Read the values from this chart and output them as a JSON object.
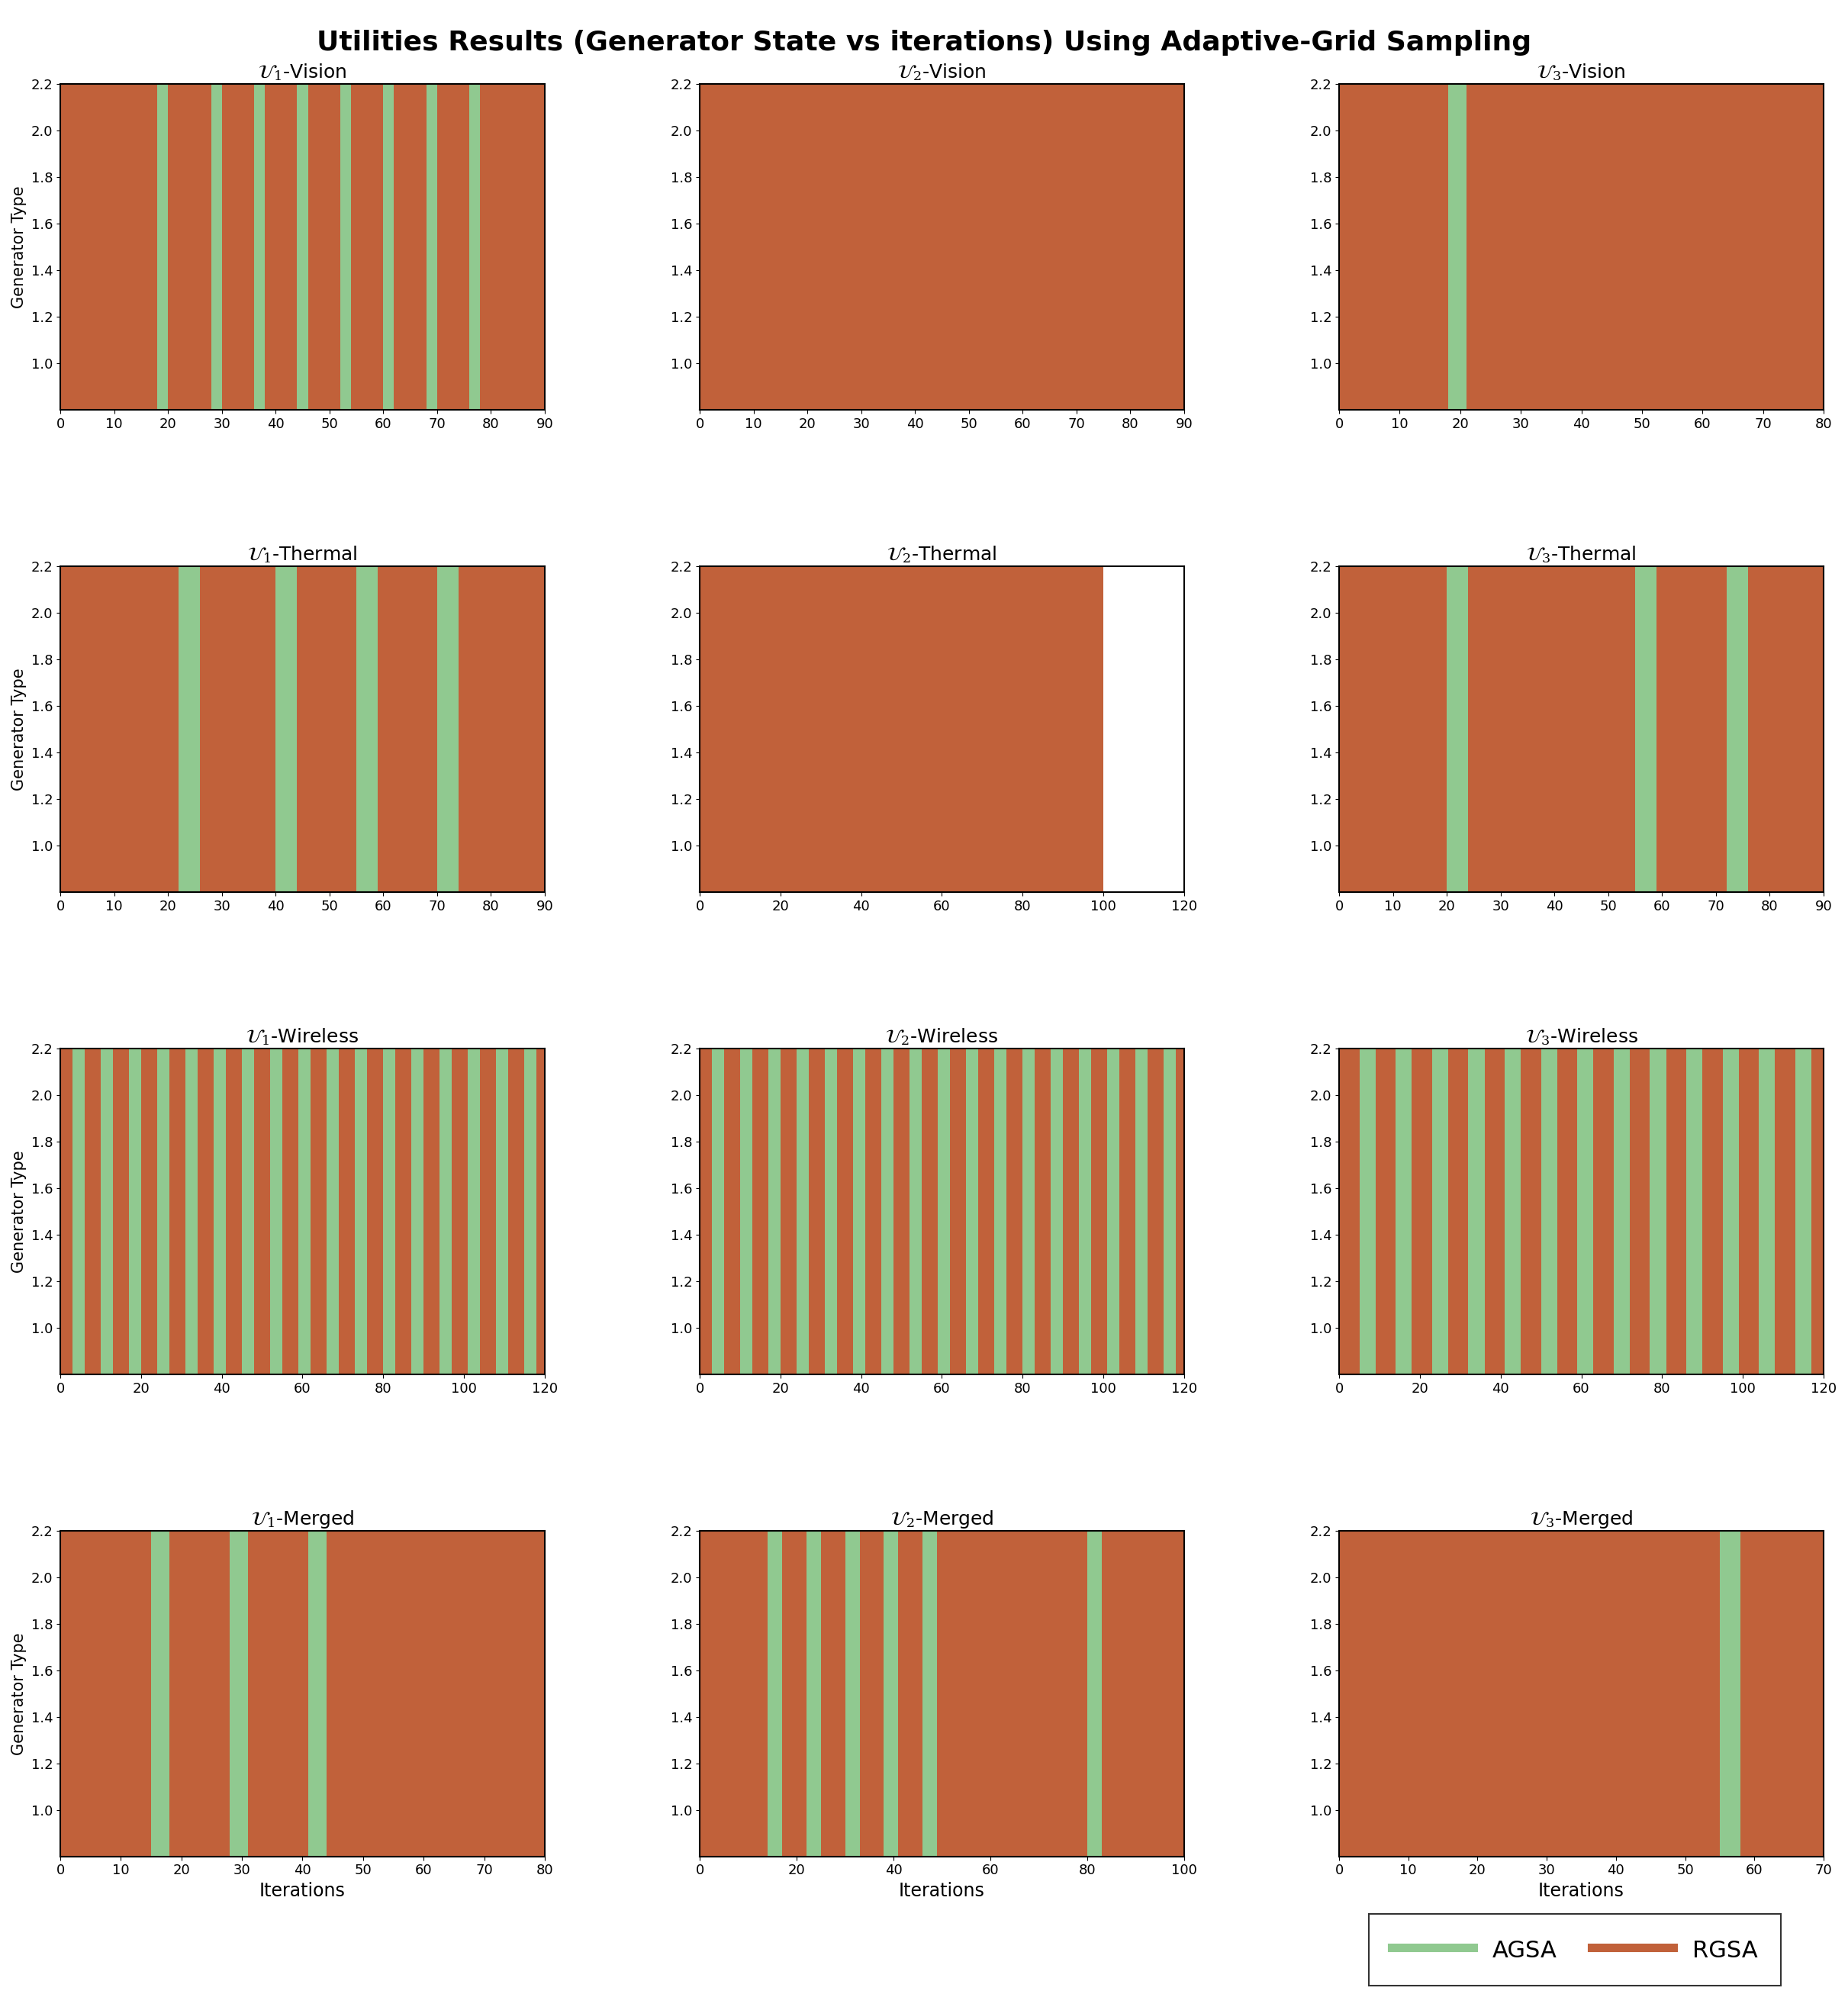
{
  "title": "Utilities Results (Generator State vs iterations) Using Adaptive-Grid Sampling",
  "subplot_titles": [
    [
      "$\\mathcal{U}_1$-Vision",
      "$\\mathcal{U}_2$-Vision",
      "$\\mathcal{U}_3$-Vision"
    ],
    [
      "$\\mathcal{U}_1$-Thermal",
      "$\\mathcal{U}_2$-Thermal",
      "$\\mathcal{U}_3$-Thermal"
    ],
    [
      "$\\mathcal{U}_1$-Wireless",
      "$\\mathcal{U}_2$-Wireless",
      "$\\mathcal{U}_3$-Wireless"
    ],
    [
      "$\\mathcal{U}_1$-Merged",
      "$\\mathcal{U}_2$-Merged",
      "$\\mathcal{U}_3$-Merged"
    ]
  ],
  "ylabel": "Generator Type",
  "xlabel": "Iterations",
  "ylim": [
    0.8,
    2.2
  ],
  "yticks": [
    1.0,
    1.2,
    1.4,
    1.6,
    1.8,
    2.0,
    2.2
  ],
  "color_agsa": "#90C990",
  "color_rgsa": "#C1613A",
  "agsa_label": "AGSA",
  "rgsa_label": "RGSA",
  "plots": {
    "vision_u1": {
      "xlim": [
        0,
        90
      ],
      "xticks": [
        0,
        10,
        20,
        30,
        40,
        50,
        60,
        70,
        80,
        90
      ],
      "segments": [
        {
          "start": 0,
          "end": 18,
          "color": "rgsa"
        },
        {
          "start": 18,
          "end": 20,
          "color": "agsa"
        },
        {
          "start": 20,
          "end": 28,
          "color": "rgsa"
        },
        {
          "start": 28,
          "end": 30,
          "color": "agsa"
        },
        {
          "start": 30,
          "end": 36,
          "color": "rgsa"
        },
        {
          "start": 36,
          "end": 38,
          "color": "agsa"
        },
        {
          "start": 38,
          "end": 44,
          "color": "rgsa"
        },
        {
          "start": 44,
          "end": 46,
          "color": "agsa"
        },
        {
          "start": 46,
          "end": 52,
          "color": "rgsa"
        },
        {
          "start": 52,
          "end": 54,
          "color": "agsa"
        },
        {
          "start": 54,
          "end": 60,
          "color": "rgsa"
        },
        {
          "start": 60,
          "end": 62,
          "color": "agsa"
        },
        {
          "start": 62,
          "end": 68,
          "color": "rgsa"
        },
        {
          "start": 68,
          "end": 70,
          "color": "agsa"
        },
        {
          "start": 70,
          "end": 76,
          "color": "rgsa"
        },
        {
          "start": 76,
          "end": 78,
          "color": "agsa"
        },
        {
          "start": 78,
          "end": 90,
          "color": "rgsa"
        }
      ]
    },
    "vision_u2": {
      "xlim": [
        0,
        90
      ],
      "xticks": [
        0,
        10,
        20,
        30,
        40,
        50,
        60,
        70,
        80,
        90
      ],
      "segments": [
        {
          "start": 0,
          "end": 90,
          "color": "rgsa"
        }
      ]
    },
    "vision_u3": {
      "xlim": [
        0,
        80
      ],
      "xticks": [
        0,
        10,
        20,
        30,
        40,
        50,
        60,
        70,
        80
      ],
      "segments": [
        {
          "start": 0,
          "end": 18,
          "color": "rgsa"
        },
        {
          "start": 18,
          "end": 21,
          "color": "agsa"
        },
        {
          "start": 21,
          "end": 80,
          "color": "rgsa"
        }
      ]
    },
    "thermal_u1": {
      "xlim": [
        0,
        90
      ],
      "xticks": [
        0,
        10,
        20,
        30,
        40,
        50,
        60,
        70,
        80,
        90
      ],
      "segments": [
        {
          "start": 0,
          "end": 22,
          "color": "rgsa"
        },
        {
          "start": 22,
          "end": 26,
          "color": "agsa"
        },
        {
          "start": 26,
          "end": 40,
          "color": "rgsa"
        },
        {
          "start": 40,
          "end": 44,
          "color": "agsa"
        },
        {
          "start": 44,
          "end": 55,
          "color": "rgsa"
        },
        {
          "start": 55,
          "end": 59,
          "color": "agsa"
        },
        {
          "start": 59,
          "end": 70,
          "color": "rgsa"
        },
        {
          "start": 70,
          "end": 74,
          "color": "agsa"
        },
        {
          "start": 74,
          "end": 90,
          "color": "rgsa"
        }
      ]
    },
    "thermal_u2": {
      "xlim": [
        0,
        120
      ],
      "xticks": [
        0,
        20,
        40,
        60,
        80,
        100,
        120
      ],
      "segments": [
        {
          "start": 0,
          "end": 100,
          "color": "rgsa"
        }
      ]
    },
    "thermal_u3": {
      "xlim": [
        0,
        90
      ],
      "xticks": [
        0,
        10,
        20,
        30,
        40,
        50,
        60,
        70,
        80,
        90
      ],
      "segments": [
        {
          "start": 0,
          "end": 20,
          "color": "rgsa"
        },
        {
          "start": 20,
          "end": 24,
          "color": "agsa"
        },
        {
          "start": 24,
          "end": 55,
          "color": "rgsa"
        },
        {
          "start": 55,
          "end": 59,
          "color": "agsa"
        },
        {
          "start": 59,
          "end": 72,
          "color": "rgsa"
        },
        {
          "start": 72,
          "end": 76,
          "color": "agsa"
        },
        {
          "start": 76,
          "end": 90,
          "color": "rgsa"
        }
      ]
    },
    "wireless_u1": {
      "xlim": [
        0,
        120
      ],
      "xticks": [
        0,
        20,
        40,
        60,
        80,
        100,
        120
      ],
      "segments": [
        {
          "start": 0,
          "end": 3,
          "color": "rgsa"
        },
        {
          "start": 3,
          "end": 6,
          "color": "agsa"
        },
        {
          "start": 6,
          "end": 10,
          "color": "rgsa"
        },
        {
          "start": 10,
          "end": 13,
          "color": "agsa"
        },
        {
          "start": 13,
          "end": 17,
          "color": "rgsa"
        },
        {
          "start": 17,
          "end": 20,
          "color": "agsa"
        },
        {
          "start": 20,
          "end": 24,
          "color": "rgsa"
        },
        {
          "start": 24,
          "end": 27,
          "color": "agsa"
        },
        {
          "start": 27,
          "end": 31,
          "color": "rgsa"
        },
        {
          "start": 31,
          "end": 34,
          "color": "agsa"
        },
        {
          "start": 34,
          "end": 38,
          "color": "rgsa"
        },
        {
          "start": 38,
          "end": 41,
          "color": "agsa"
        },
        {
          "start": 41,
          "end": 45,
          "color": "rgsa"
        },
        {
          "start": 45,
          "end": 48,
          "color": "agsa"
        },
        {
          "start": 48,
          "end": 52,
          "color": "rgsa"
        },
        {
          "start": 52,
          "end": 55,
          "color": "agsa"
        },
        {
          "start": 55,
          "end": 59,
          "color": "rgsa"
        },
        {
          "start": 59,
          "end": 62,
          "color": "agsa"
        },
        {
          "start": 62,
          "end": 66,
          "color": "rgsa"
        },
        {
          "start": 66,
          "end": 69,
          "color": "agsa"
        },
        {
          "start": 69,
          "end": 73,
          "color": "rgsa"
        },
        {
          "start": 73,
          "end": 76,
          "color": "agsa"
        },
        {
          "start": 76,
          "end": 80,
          "color": "rgsa"
        },
        {
          "start": 80,
          "end": 83,
          "color": "agsa"
        },
        {
          "start": 83,
          "end": 87,
          "color": "rgsa"
        },
        {
          "start": 87,
          "end": 90,
          "color": "agsa"
        },
        {
          "start": 90,
          "end": 94,
          "color": "rgsa"
        },
        {
          "start": 94,
          "end": 97,
          "color": "agsa"
        },
        {
          "start": 97,
          "end": 101,
          "color": "rgsa"
        },
        {
          "start": 101,
          "end": 104,
          "color": "agsa"
        },
        {
          "start": 104,
          "end": 108,
          "color": "rgsa"
        },
        {
          "start": 108,
          "end": 111,
          "color": "agsa"
        },
        {
          "start": 111,
          "end": 115,
          "color": "rgsa"
        },
        {
          "start": 115,
          "end": 118,
          "color": "agsa"
        },
        {
          "start": 118,
          "end": 120,
          "color": "rgsa"
        }
      ]
    },
    "wireless_u2": {
      "xlim": [
        0,
        120
      ],
      "xticks": [
        0,
        20,
        40,
        60,
        80,
        100,
        120
      ],
      "segments": [
        {
          "start": 0,
          "end": 3,
          "color": "rgsa"
        },
        {
          "start": 3,
          "end": 6,
          "color": "agsa"
        },
        {
          "start": 6,
          "end": 10,
          "color": "rgsa"
        },
        {
          "start": 10,
          "end": 13,
          "color": "agsa"
        },
        {
          "start": 13,
          "end": 17,
          "color": "rgsa"
        },
        {
          "start": 17,
          "end": 20,
          "color": "agsa"
        },
        {
          "start": 20,
          "end": 24,
          "color": "rgsa"
        },
        {
          "start": 24,
          "end": 27,
          "color": "agsa"
        },
        {
          "start": 27,
          "end": 31,
          "color": "rgsa"
        },
        {
          "start": 31,
          "end": 34,
          "color": "agsa"
        },
        {
          "start": 34,
          "end": 38,
          "color": "rgsa"
        },
        {
          "start": 38,
          "end": 41,
          "color": "agsa"
        },
        {
          "start": 41,
          "end": 45,
          "color": "rgsa"
        },
        {
          "start": 45,
          "end": 48,
          "color": "agsa"
        },
        {
          "start": 48,
          "end": 52,
          "color": "rgsa"
        },
        {
          "start": 52,
          "end": 55,
          "color": "agsa"
        },
        {
          "start": 55,
          "end": 59,
          "color": "rgsa"
        },
        {
          "start": 59,
          "end": 62,
          "color": "agsa"
        },
        {
          "start": 62,
          "end": 66,
          "color": "rgsa"
        },
        {
          "start": 66,
          "end": 69,
          "color": "agsa"
        },
        {
          "start": 69,
          "end": 73,
          "color": "rgsa"
        },
        {
          "start": 73,
          "end": 76,
          "color": "agsa"
        },
        {
          "start": 76,
          "end": 80,
          "color": "rgsa"
        },
        {
          "start": 80,
          "end": 83,
          "color": "agsa"
        },
        {
          "start": 83,
          "end": 87,
          "color": "rgsa"
        },
        {
          "start": 87,
          "end": 90,
          "color": "agsa"
        },
        {
          "start": 90,
          "end": 94,
          "color": "rgsa"
        },
        {
          "start": 94,
          "end": 97,
          "color": "agsa"
        },
        {
          "start": 97,
          "end": 101,
          "color": "rgsa"
        },
        {
          "start": 101,
          "end": 104,
          "color": "agsa"
        },
        {
          "start": 104,
          "end": 108,
          "color": "rgsa"
        },
        {
          "start": 108,
          "end": 111,
          "color": "agsa"
        },
        {
          "start": 111,
          "end": 115,
          "color": "rgsa"
        },
        {
          "start": 115,
          "end": 118,
          "color": "agsa"
        },
        {
          "start": 118,
          "end": 120,
          "color": "rgsa"
        }
      ]
    },
    "wireless_u3": {
      "xlim": [
        0,
        120
      ],
      "xticks": [
        0,
        20,
        40,
        60,
        80,
        100,
        120
      ],
      "segments": [
        {
          "start": 0,
          "end": 5,
          "color": "rgsa"
        },
        {
          "start": 5,
          "end": 9,
          "color": "agsa"
        },
        {
          "start": 9,
          "end": 14,
          "color": "rgsa"
        },
        {
          "start": 14,
          "end": 18,
          "color": "agsa"
        },
        {
          "start": 18,
          "end": 23,
          "color": "rgsa"
        },
        {
          "start": 23,
          "end": 27,
          "color": "agsa"
        },
        {
          "start": 27,
          "end": 32,
          "color": "rgsa"
        },
        {
          "start": 32,
          "end": 36,
          "color": "agsa"
        },
        {
          "start": 36,
          "end": 41,
          "color": "rgsa"
        },
        {
          "start": 41,
          "end": 45,
          "color": "agsa"
        },
        {
          "start": 45,
          "end": 50,
          "color": "rgsa"
        },
        {
          "start": 50,
          "end": 54,
          "color": "agsa"
        },
        {
          "start": 54,
          "end": 59,
          "color": "rgsa"
        },
        {
          "start": 59,
          "end": 63,
          "color": "agsa"
        },
        {
          "start": 63,
          "end": 68,
          "color": "rgsa"
        },
        {
          "start": 68,
          "end": 72,
          "color": "agsa"
        },
        {
          "start": 72,
          "end": 77,
          "color": "rgsa"
        },
        {
          "start": 77,
          "end": 81,
          "color": "agsa"
        },
        {
          "start": 81,
          "end": 86,
          "color": "rgsa"
        },
        {
          "start": 86,
          "end": 90,
          "color": "agsa"
        },
        {
          "start": 90,
          "end": 95,
          "color": "rgsa"
        },
        {
          "start": 95,
          "end": 99,
          "color": "agsa"
        },
        {
          "start": 99,
          "end": 104,
          "color": "rgsa"
        },
        {
          "start": 104,
          "end": 108,
          "color": "agsa"
        },
        {
          "start": 108,
          "end": 113,
          "color": "rgsa"
        },
        {
          "start": 113,
          "end": 117,
          "color": "agsa"
        },
        {
          "start": 117,
          "end": 120,
          "color": "rgsa"
        }
      ]
    },
    "merged_u1": {
      "xlim": [
        0,
        80
      ],
      "xticks": [
        0,
        10,
        20,
        30,
        40,
        50,
        60,
        70,
        80
      ],
      "segments": [
        {
          "start": 0,
          "end": 15,
          "color": "rgsa"
        },
        {
          "start": 15,
          "end": 18,
          "color": "agsa"
        },
        {
          "start": 18,
          "end": 28,
          "color": "rgsa"
        },
        {
          "start": 28,
          "end": 31,
          "color": "agsa"
        },
        {
          "start": 31,
          "end": 41,
          "color": "rgsa"
        },
        {
          "start": 41,
          "end": 44,
          "color": "agsa"
        },
        {
          "start": 44,
          "end": 80,
          "color": "rgsa"
        }
      ]
    },
    "merged_u2": {
      "xlim": [
        0,
        100
      ],
      "xticks": [
        0,
        20,
        40,
        60,
        80,
        100
      ],
      "segments": [
        {
          "start": 0,
          "end": 14,
          "color": "rgsa"
        },
        {
          "start": 14,
          "end": 17,
          "color": "agsa"
        },
        {
          "start": 17,
          "end": 22,
          "color": "rgsa"
        },
        {
          "start": 22,
          "end": 25,
          "color": "agsa"
        },
        {
          "start": 25,
          "end": 30,
          "color": "rgsa"
        },
        {
          "start": 30,
          "end": 33,
          "color": "agsa"
        },
        {
          "start": 33,
          "end": 38,
          "color": "rgsa"
        },
        {
          "start": 38,
          "end": 41,
          "color": "agsa"
        },
        {
          "start": 41,
          "end": 46,
          "color": "rgsa"
        },
        {
          "start": 46,
          "end": 49,
          "color": "agsa"
        },
        {
          "start": 49,
          "end": 80,
          "color": "rgsa"
        },
        {
          "start": 80,
          "end": 83,
          "color": "agsa"
        },
        {
          "start": 83,
          "end": 100,
          "color": "rgsa"
        }
      ]
    },
    "merged_u3": {
      "xlim": [
        0,
        70
      ],
      "xticks": [
        0,
        10,
        20,
        30,
        40,
        50,
        60,
        70
      ],
      "segments": [
        {
          "start": 0,
          "end": 55,
          "color": "rgsa"
        },
        {
          "start": 55,
          "end": 58,
          "color": "agsa"
        },
        {
          "start": 58,
          "end": 70,
          "color": "rgsa"
        }
      ]
    }
  },
  "plot_order": [
    [
      "vision_u1",
      "vision_u2",
      "vision_u3"
    ],
    [
      "thermal_u1",
      "thermal_u2",
      "thermal_u3"
    ],
    [
      "wireless_u1",
      "wireless_u2",
      "wireless_u3"
    ],
    [
      "merged_u1",
      "merged_u2",
      "merged_u3"
    ]
  ]
}
